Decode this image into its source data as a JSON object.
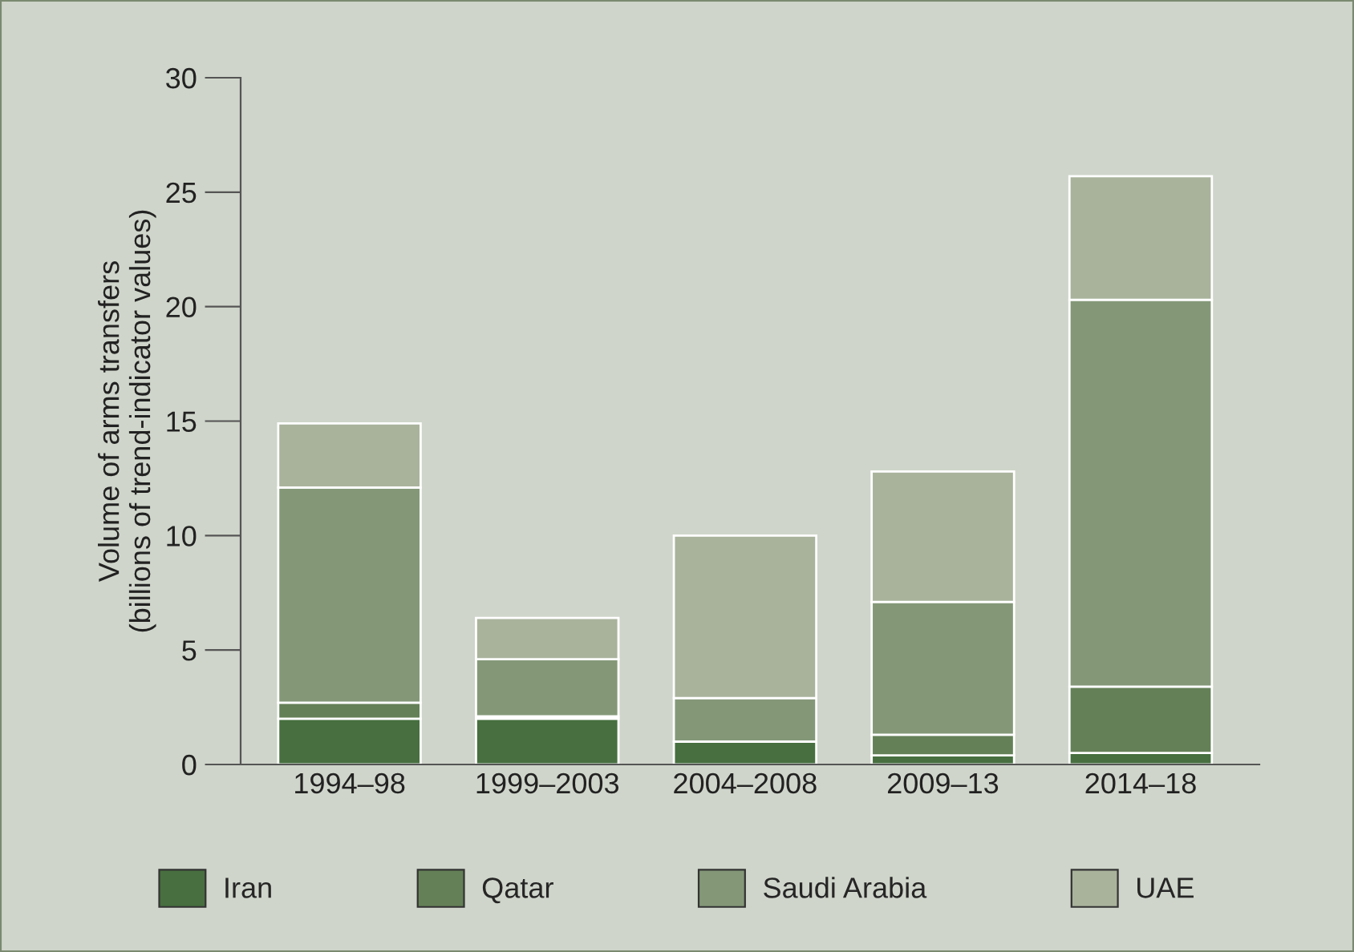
{
  "chart_data": {
    "type": "bar",
    "stacked": true,
    "ylabel": "Volume of arms transfers\n(billions of trend-indicator values)",
    "categories": [
      "1994–98",
      "1999–2003",
      "2004–2008",
      "2009–13",
      "2014–18"
    ],
    "series": [
      {
        "name": "Iran",
        "color": "#476f3f",
        "values": [
          2.0,
          2.0,
          1.0,
          0.4,
          0.5
        ]
      },
      {
        "name": "Qatar",
        "color": "#648057",
        "values": [
          0.7,
          0.1,
          0.0,
          0.9,
          2.9
        ]
      },
      {
        "name": "Saudi Arabia",
        "color": "#849878",
        "values": [
          9.4,
          2.5,
          1.9,
          5.8,
          16.9
        ]
      },
      {
        "name": "UAE",
        "color": "#a9b39c",
        "values": [
          2.8,
          1.8,
          7.1,
          5.7,
          5.4
        ]
      }
    ],
    "ylim": [
      0,
      30
    ],
    "yticks": [
      0,
      5,
      10,
      15,
      20,
      25,
      30
    ],
    "grid": false,
    "legend": "bottom"
  }
}
